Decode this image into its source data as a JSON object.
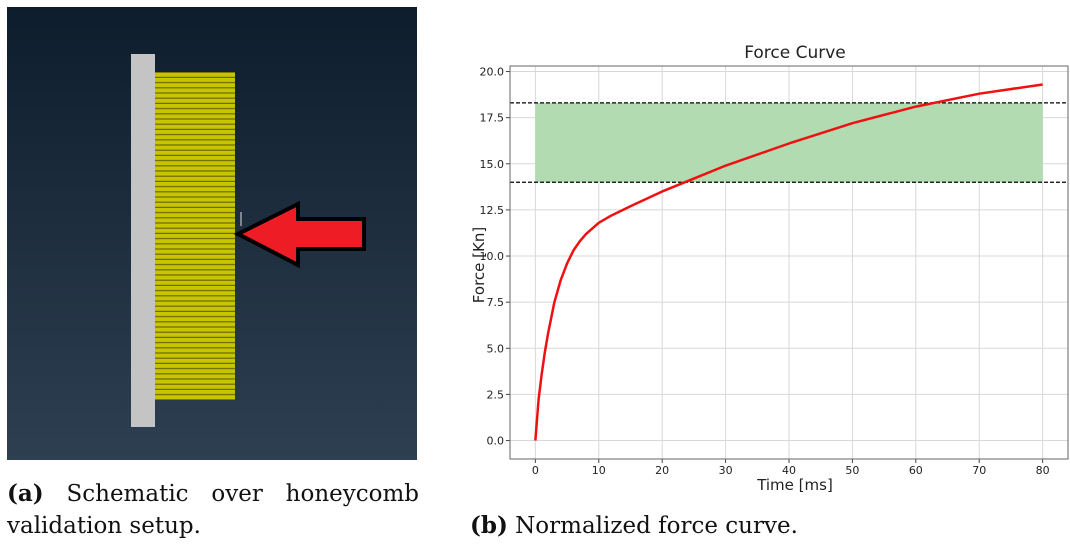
{
  "subfigure_a": {
    "label": "(a)",
    "caption": "Schematic over honeycomb validation setup."
  },
  "subfigure_b": {
    "label": "(b)",
    "caption": "Normalized force curve."
  },
  "chart_data": {
    "type": "line",
    "title": "Force Curve",
    "x_label": "Time [ms]",
    "y_label": "Force [Kn]",
    "series": [
      {
        "color": "#ee1111",
        "x": [
          0,
          0.5,
          1,
          1.5,
          2,
          3,
          4,
          5,
          6,
          7,
          8,
          10,
          12,
          15,
          20,
          25,
          30,
          40,
          50,
          60,
          70,
          80
        ],
        "values": [
          0,
          2.2,
          3.6,
          4.8,
          5.8,
          7.5,
          8.7,
          9.6,
          10.3,
          10.8,
          11.2,
          11.8,
          12.2,
          12.7,
          13.5,
          14.2,
          14.9,
          16.1,
          17.2,
          18.1,
          18.8,
          19.3
        ]
      }
    ],
    "band": {
      "x0": 0,
      "x1": 80,
      "y0": 14.0,
      "y1": 18.3,
      "color": "#b2dbb2"
    },
    "hlines": [
      14.0,
      18.3
    ],
    "xlim": [
      -4,
      84
    ],
    "xticks": [
      0,
      10,
      20,
      30,
      40,
      50,
      60,
      70,
      80
    ],
    "ylim": [
      -1,
      20.3
    ],
    "yticks": [
      {
        "value": 0,
        "label": "0.0"
      },
      2.5,
      {
        "value": 5,
        "label": "5.0"
      },
      7.5,
      {
        "value": 10,
        "label": "10.0"
      },
      12.5,
      {
        "value": 15,
        "label": "15.0"
      },
      17.5,
      {
        "value": 20,
        "label": "20.0"
      }
    ],
    "grid": true
  }
}
